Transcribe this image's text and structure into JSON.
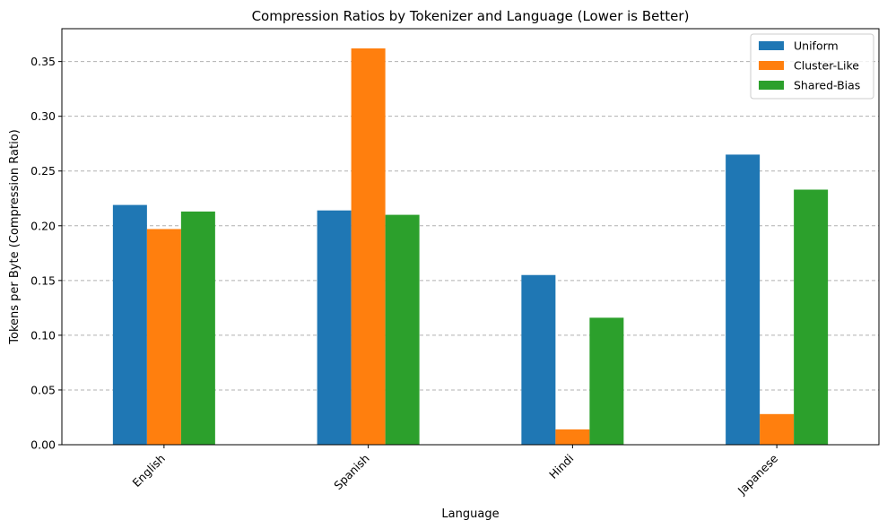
{
  "chart_data": {
    "type": "bar",
    "title": "Compression Ratios by Tokenizer and Language (Lower is Better)",
    "xlabel": "Language",
    "ylabel": "Tokens per Byte (Compression Ratio)",
    "categories": [
      "English",
      "Spanish",
      "Hindi",
      "Japanese"
    ],
    "series": [
      {
        "name": "Uniform",
        "color": "#1f77b4",
        "values": [
          0.219,
          0.214,
          0.155,
          0.265
        ]
      },
      {
        "name": "Cluster-Like",
        "color": "#ff7f0e",
        "values": [
          0.197,
          0.362,
          0.014,
          0.028
        ]
      },
      {
        "name": "Shared-Bias",
        "color": "#2ca02c",
        "values": [
          0.213,
          0.21,
          0.116,
          0.233
        ]
      }
    ],
    "ylim": [
      0,
      0.38
    ],
    "yticks": [
      "0.00",
      "0.05",
      "0.10",
      "0.15",
      "0.20",
      "0.25",
      "0.30",
      "0.35"
    ],
    "grid": "y-dashed",
    "legend_position": "top-right"
  }
}
